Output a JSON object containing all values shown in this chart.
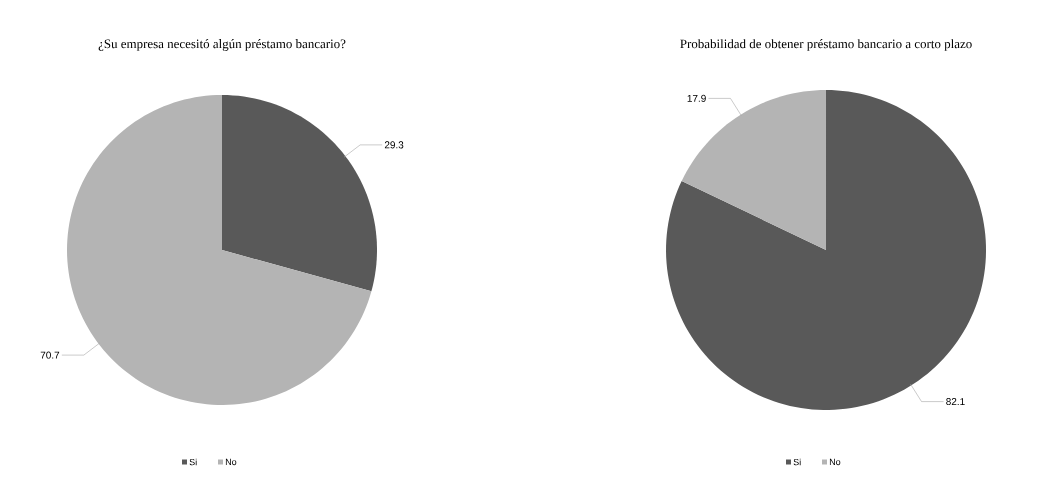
{
  "chart_data": [
    {
      "type": "pie",
      "title": "¿Su empresa necesitó algún préstamo bancario?",
      "categories": [
        "Si",
        "No"
      ],
      "values": [
        29.3,
        70.7
      ],
      "colors": [
        "#595959",
        "#b4b4b4"
      ],
      "data_labels": true,
      "legend": "bottom"
    },
    {
      "type": "pie",
      "title": "Probabilidad de obtener préstamo bancario a corto plazo",
      "categories": [
        "Si",
        "No"
      ],
      "values": [
        82.1,
        17.9
      ],
      "colors": [
        "#595959",
        "#b4b4b4"
      ],
      "data_labels": true,
      "legend": "bottom"
    }
  ]
}
